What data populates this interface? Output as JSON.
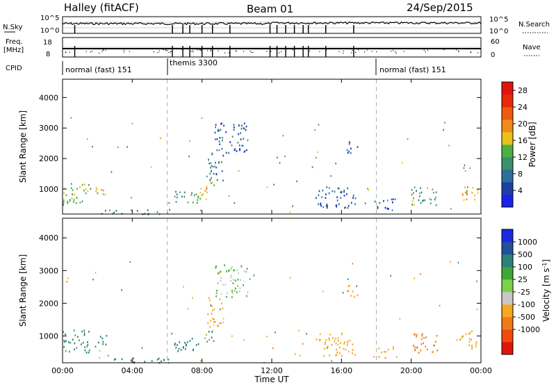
{
  "header": {
    "station": "Halley (fitACF)",
    "beam": "Beam 01",
    "date": "24/Sep/2015"
  },
  "summary_labels": {
    "nsky": "N.Sky",
    "freq_line1": "Freq.",
    "freq_line2": "[MHz]",
    "cpid": "CPID",
    "nsearch": "N.Search",
    "nave": "Nave"
  },
  "summary_ticks": {
    "noise_left": [
      "10^5",
      "10^0"
    ],
    "noise_right": [
      "10^5",
      "10^0"
    ],
    "freq_left": [
      "18",
      "8"
    ],
    "freq_right": [
      "60",
      "0"
    ]
  },
  "cpid_segments": [
    {
      "label": "normal (fast) 151",
      "start_hour": 0
    },
    {
      "label": "themis 3300",
      "start_hour": 6
    },
    {
      "label": "normal (fast) 151",
      "start_hour": 18
    }
  ],
  "colors": {
    "power_scale": [
      "#1a22e6",
      "#1f3fa3",
      "#2d6f9a",
      "#3a8f6c",
      "#4caf44",
      "#e8c21a",
      "#f08a1a",
      "#f05a10",
      "#e62a0a",
      "#e0140e"
    ],
    "velocity_scale": [
      "#e0140e",
      "#f04a10",
      "#f07a1a",
      "#f4a820",
      "#c8c8c8",
      "#7cd04a",
      "#3ca83a",
      "#2d7f7a",
      "#23509a",
      "#1a2ae0"
    ]
  },
  "chart_data": [
    {
      "type": "heatmap",
      "panel": "power",
      "title": "",
      "xlabel": "Time UT",
      "ylabel": "Slant Range [km]",
      "x_ticks": [
        "00:00",
        "04:00",
        "08:00",
        "12:00",
        "16:00",
        "20:00",
        "00:00"
      ],
      "xlim_hours": [
        0,
        24
      ],
      "y_ticks": [
        1000,
        2000,
        3000,
        4000
      ],
      "ylim": [
        180,
        4600
      ],
      "colorbar_label": "Power [dB]",
      "colorbar_ticks": [
        4,
        8,
        12,
        16,
        20,
        24,
        28
      ],
      "colorbar_range": [
        0,
        30
      ],
      "mode_change_hours": [
        6,
        18
      ],
      "echo_regions": [
        {
          "t0": 0.0,
          "t1": 1.6,
          "r0": 500,
          "r1": 1200,
          "value": 14
        },
        {
          "t0": 1.8,
          "t1": 2.5,
          "r0": 700,
          "r1": 1100,
          "value": 16
        },
        {
          "t0": 2.2,
          "t1": 6.2,
          "r0": 200,
          "r1": 350,
          "value": 10
        },
        {
          "t0": 6.2,
          "t1": 8.0,
          "r0": 550,
          "r1": 950,
          "value": 12
        },
        {
          "t0": 7.9,
          "t1": 8.7,
          "r0": 850,
          "r1": 1250,
          "value": 18
        },
        {
          "t0": 8.3,
          "t1": 9.2,
          "r0": 1300,
          "r1": 2200,
          "value": 8
        },
        {
          "t0": 8.7,
          "t1": 10.6,
          "r0": 2200,
          "r1": 3200,
          "value": 6
        },
        {
          "t0": 14.5,
          "t1": 16.8,
          "r0": 400,
          "r1": 1100,
          "value": 6
        },
        {
          "t0": 16.2,
          "t1": 16.9,
          "r0": 2200,
          "r1": 2600,
          "value": 6
        },
        {
          "t0": 17.8,
          "t1": 19.0,
          "r0": 350,
          "r1": 700,
          "value": 6
        },
        {
          "t0": 20.0,
          "t1": 21.5,
          "r0": 500,
          "r1": 1100,
          "value": 12
        },
        {
          "t0": 22.8,
          "t1": 23.8,
          "r0": 600,
          "r1": 1200,
          "value": 18
        }
      ]
    },
    {
      "type": "heatmap",
      "panel": "velocity",
      "title": "",
      "xlabel": "Time UT",
      "ylabel": "Slant Range [km]",
      "x_ticks": [
        "00:00",
        "04:00",
        "08:00",
        "12:00",
        "16:00",
        "20:00",
        "00:00"
      ],
      "xlim_hours": [
        0,
        24
      ],
      "y_ticks": [
        1000,
        2000,
        3000,
        4000
      ],
      "ylim": [
        180,
        4600
      ],
      "colorbar_label": "Velocity [m s^-1]",
      "colorbar_ticks": [
        "1000",
        "500",
        "100",
        "25",
        "-25",
        "-100",
        "-500",
        "-1000"
      ],
      "mode_change_hours": [
        6,
        18
      ],
      "echo_regions": [
        {
          "t0": 0.0,
          "t1": 1.6,
          "r0": 500,
          "r1": 1200,
          "value": 150
        },
        {
          "t0": 1.8,
          "t1": 2.5,
          "r0": 700,
          "r1": 1100,
          "value": 300
        },
        {
          "t0": 2.2,
          "t1": 6.2,
          "r0": 200,
          "r1": 350,
          "value": 200
        },
        {
          "t0": 6.2,
          "t1": 8.0,
          "r0": 550,
          "r1": 950,
          "value": 300
        },
        {
          "t0": 7.9,
          "t1": 8.7,
          "r0": 850,
          "r1": 1250,
          "value": 80
        },
        {
          "t0": 8.3,
          "t1": 9.2,
          "r0": 1300,
          "r1": 2200,
          "value": -150
        },
        {
          "t0": 8.7,
          "t1": 10.6,
          "r0": 2200,
          "r1": 3200,
          "value": 0
        },
        {
          "t0": 14.5,
          "t1": 16.8,
          "r0": 400,
          "r1": 1100,
          "value": -250
        },
        {
          "t0": 16.2,
          "t1": 16.9,
          "r0": 2200,
          "r1": 2600,
          "value": -400
        },
        {
          "t0": 17.8,
          "t1": 19.0,
          "r0": 350,
          "r1": 700,
          "value": -150
        },
        {
          "t0": 20.0,
          "t1": 21.5,
          "r0": 500,
          "r1": 1100,
          "value": -600
        },
        {
          "t0": 22.8,
          "t1": 23.8,
          "r0": 600,
          "r1": 1200,
          "value": -300
        }
      ]
    }
  ]
}
